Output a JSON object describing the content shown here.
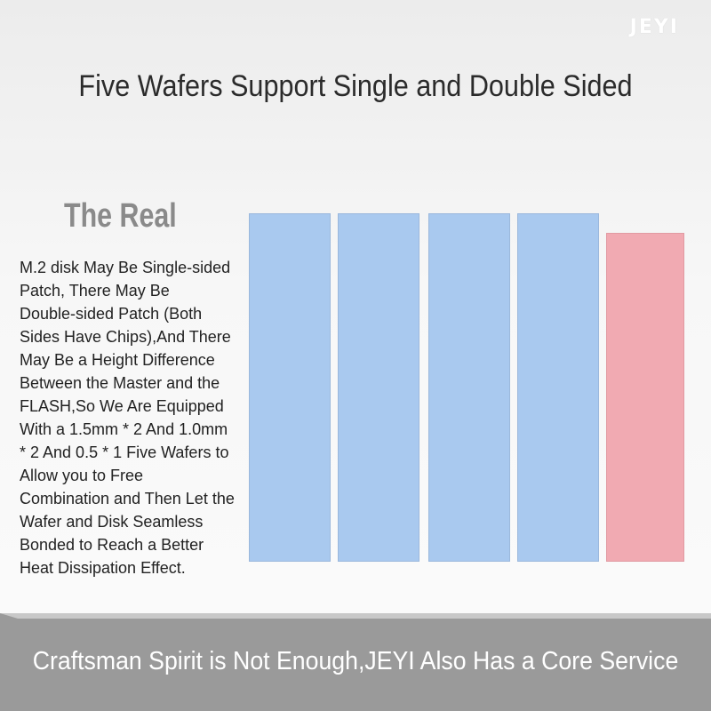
{
  "brand": "JEYI",
  "header": {
    "title": "Five Wafers Support Single and Double Sided"
  },
  "panel": {
    "heading": "The Real",
    "body_lines": [
      "M.2 disk May Be Single-sided",
      "Patch, There May Be",
      "Double-sided Patch (Both",
      "Sides Have Chips),And There",
      "May Be a Height Difference",
      "Between the Master and the",
      "FLASH,So We Are Equipped",
      "With a 1.5mm * 2 And 1.0mm",
      "* 2 And 0.5 * 1 Five Wafers to",
      "Allow you to Free",
      "Combination and Then Let the",
      "Wafer and Disk Seamless",
      "Bonded to Reach a Better",
      "Heat Dissipation Effect."
    ]
  },
  "footer": {
    "text": "Craftsman Spirit is Not Enough,JEYI Also Has a Core Service"
  }
}
